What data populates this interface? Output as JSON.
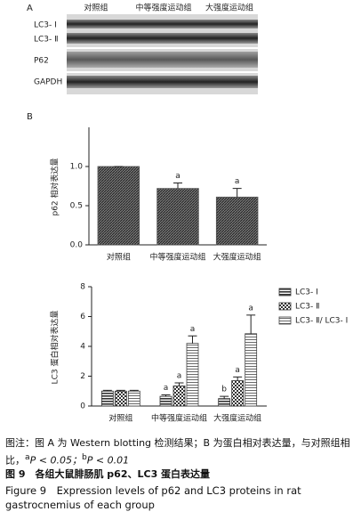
{
  "panel_a": {
    "label": "A",
    "lanes": [
      "对照组",
      "中等强度运动组",
      "大强度运动组"
    ],
    "rows": [
      "LC3- Ⅰ",
      "LC3- Ⅱ",
      "P62",
      "GAPDH"
    ]
  },
  "panel_b": {
    "label": "B"
  },
  "chart_data": [
    {
      "type": "bar",
      "y_label": "p62 相对表达量",
      "categories": [
        "对照组",
        "中等强度运动组",
        "大强度运动组"
      ],
      "values": [
        1.0,
        0.72,
        0.61
      ],
      "errors": [
        0,
        0.07,
        0.11
      ],
      "significance": [
        null,
        "a",
        "a"
      ],
      "color": "#555",
      "ylim": [
        0,
        1.5
      ],
      "yticks": [
        {
          "value": 0,
          "label": "0.0"
        },
        {
          "value": 0.5,
          "label": "0.5"
        },
        {
          "value": 1,
          "label": "1.0"
        }
      ]
    },
    {
      "type": "bar",
      "y_label": "LC3 蛋白相对表达量",
      "categories": [
        "对照组",
        "中等强度运动组",
        "大强度运动组"
      ],
      "series": [
        {
          "name": "LC3- Ⅰ",
          "color": "#333",
          "values": [
            1.0,
            0.65,
            0.5
          ],
          "errors": [
            0.05,
            0.1,
            0.15
          ],
          "significance": [
            null,
            "a",
            "b"
          ]
        },
        {
          "name": "LC3- Ⅱ",
          "color": "#333",
          "values": [
            1.0,
            1.35,
            1.7
          ],
          "errors": [
            0.05,
            0.2,
            0.25
          ],
          "significance": [
            null,
            "a",
            "a"
          ]
        },
        {
          "name": "LC3- Ⅱ/ LC3- Ⅰ",
          "color": "#444",
          "values": [
            1.0,
            4.2,
            4.85
          ],
          "errors": [
            0.05,
            0.5,
            1.25
          ],
          "significance": [
            null,
            "a",
            "a"
          ]
        }
      ],
      "legend": "upper right",
      "ylim": [
        0,
        8
      ],
      "yticks": [
        0,
        2,
        4,
        6,
        8
      ]
    }
  ],
  "caption": {
    "note": [
      "图注：图 A 为 Western blotting 检测结果；B 为蛋白相对表达量，与对照组相比，",
      "a",
      "P < 0.05；",
      "b",
      "P < 0.01"
    ],
    "title_cn": "图 9　各组大鼠腓肠肌 p62、LC3 蛋白表达量",
    "title_en": "Figure 9　Expression levels of p62 and LC3 proteins in rat gastrocnemius of each group"
  }
}
